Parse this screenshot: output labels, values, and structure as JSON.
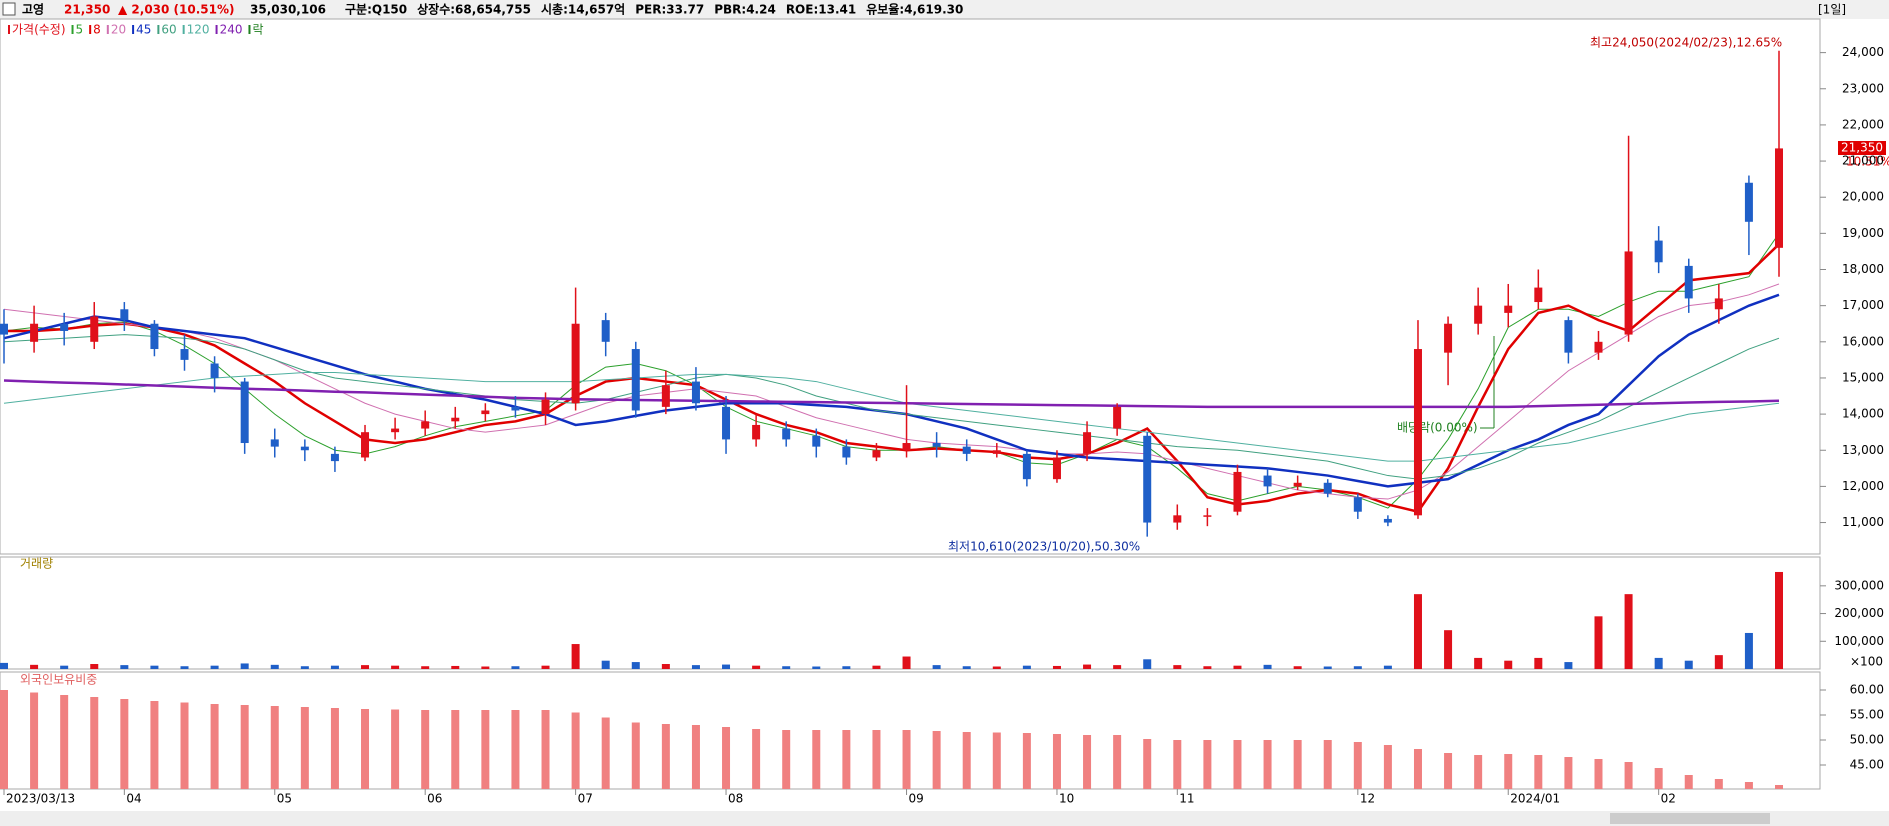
{
  "header": {
    "name": "고영",
    "price": "21,350",
    "change": "▲ 2,030 (10.51%)",
    "volume": "35,030,106",
    "items": [
      "구분:Q150",
      "상장수:68,654,755",
      "시총:14,657억",
      "PER:33.77",
      "PBR:4.24",
      "ROE:13.41",
      "유보율:4,619.30"
    ],
    "period": "[1일]"
  },
  "chart_data": [
    {
      "type": "candlestick",
      "price_name": "가격(수정)",
      "lock_label": "락",
      "categories": [
        "2023/03/13",
        null,
        null,
        null,
        "04",
        null,
        null,
        null,
        null,
        "05",
        null,
        null,
        null,
        null,
        "06",
        null,
        null,
        null,
        null,
        "07",
        null,
        null,
        null,
        null,
        "08",
        null,
        null,
        null,
        null,
        null,
        "09",
        null,
        null,
        null,
        null,
        "10",
        null,
        null,
        null,
        "11",
        null,
        null,
        null,
        null,
        null,
        "12",
        null,
        null,
        null,
        null,
        "2024/01",
        null,
        null,
        null,
        null,
        "02",
        null,
        null,
        null,
        null
      ],
      "candles": [
        [
          16500,
          16900,
          15400,
          16200
        ],
        [
          16000,
          17000,
          15700,
          16500
        ],
        [
          16500,
          16800,
          15900,
          16300
        ],
        [
          16000,
          17100,
          15800,
          16700
        ],
        [
          16900,
          17100,
          16300,
          16600
        ],
        [
          16500,
          16600,
          15600,
          15800
        ],
        [
          15800,
          16200,
          15200,
          15500
        ],
        [
          15400,
          15600,
          14600,
          15000
        ],
        [
          14900,
          15000,
          12900,
          13200
        ],
        [
          13300,
          13600,
          12800,
          13100
        ],
        [
          13100,
          13300,
          12700,
          13000
        ],
        [
          12900,
          13100,
          12400,
          12700
        ],
        [
          12800,
          13700,
          12700,
          13500
        ],
        [
          13500,
          13900,
          13300,
          13600
        ],
        [
          13600,
          14100,
          13400,
          13800
        ],
        [
          13800,
          14200,
          13600,
          13900
        ],
        [
          14000,
          14300,
          13800,
          14100
        ],
        [
          14200,
          14500,
          13900,
          14100
        ],
        [
          14000,
          14600,
          13700,
          14400
        ],
        [
          14300,
          17500,
          14100,
          16500
        ],
        [
          16600,
          16800,
          15600,
          16000
        ],
        [
          15800,
          16000,
          13900,
          14100
        ],
        [
          14200,
          15200,
          14000,
          14800
        ],
        [
          14900,
          15300,
          14100,
          14300
        ],
        [
          14200,
          14500,
          12900,
          13300
        ],
        [
          13300,
          14000,
          13100,
          13700
        ],
        [
          13600,
          13800,
          13100,
          13300
        ],
        [
          13400,
          13600,
          12800,
          13100
        ],
        [
          13100,
          13300,
          12600,
          12800
        ],
        [
          12800,
          13200,
          12700,
          13000
        ],
        [
          13000,
          14800,
          12800,
          13200
        ],
        [
          13200,
          13500,
          12800,
          13100
        ],
        [
          13100,
          13300,
          12700,
          12900
        ],
        [
          12900,
          13200,
          12800,
          13000
        ],
        [
          12900,
          13000,
          12000,
          12200
        ],
        [
          12200,
          13000,
          12100,
          12800
        ],
        [
          12900,
          13800,
          12700,
          13500
        ],
        [
          13600,
          14300,
          13400,
          14200
        ],
        [
          13400,
          13500,
          10610,
          11000
        ],
        [
          11000,
          11500,
          10800,
          11200
        ],
        [
          11200,
          11400,
          10900,
          11200
        ],
        [
          11300,
          12600,
          11200,
          12400
        ],
        [
          12300,
          12500,
          11800,
          12000
        ],
        [
          12000,
          12300,
          11900,
          12100
        ],
        [
          12100,
          12200,
          11700,
          11800
        ],
        [
          11700,
          11800,
          11100,
          11300
        ],
        [
          11100,
          11200,
          10900,
          11000
        ],
        [
          11200,
          16600,
          11100,
          15800
        ],
        [
          15700,
          16700,
          14800,
          16500
        ],
        [
          16500,
          17500,
          16200,
          17000
        ],
        [
          16800,
          17600,
          16400,
          17000
        ],
        [
          17100,
          18000,
          16900,
          17500
        ],
        [
          16600,
          16700,
          15400,
          15700
        ],
        [
          15700,
          16300,
          15500,
          16000
        ],
        [
          16200,
          21700,
          16000,
          18500
        ],
        [
          18800,
          19200,
          17900,
          18200
        ],
        [
          18100,
          18300,
          16800,
          17200
        ],
        [
          16900,
          17600,
          16500,
          17200
        ],
        [
          20400,
          20600,
          18400,
          19320
        ],
        [
          18600,
          24050,
          17800,
          21350
        ]
      ],
      "up_color": "#e0101a",
      "down_color": "#1f5fc8",
      "series": [
        {
          "name": "5",
          "color": "#2ca02c",
          "width": 1,
          "values": [
            16300,
            16400,
            16350,
            16500,
            16550,
            16300,
            15900,
            15400,
            14700,
            14000,
            13400,
            13000,
            12900,
            13100,
            13400,
            13650,
            13800,
            13950,
            14100,
            14800,
            15300,
            15400,
            15200,
            14800,
            14200,
            13800,
            13600,
            13400,
            13100,
            13000,
            13000,
            13100,
            13000,
            12950,
            12650,
            12600,
            12900,
            13300,
            13100,
            12500,
            11800,
            11600,
            11800,
            12000,
            11900,
            11700,
            11400,
            12200,
            13300,
            14700,
            16400,
            16900,
            16900,
            16700,
            17100,
            17400,
            17400,
            17600,
            17800,
            19000
          ]
        },
        {
          "name": "8",
          "color": "#e00000",
          "width": 2.5,
          "values": [
            16300,
            16300,
            16350,
            16450,
            16500,
            16400,
            16200,
            15900,
            15400,
            14900,
            14300,
            13800,
            13300,
            13200,
            13300,
            13500,
            13700,
            13800,
            14000,
            14500,
            14900,
            15000,
            14900,
            14800,
            14400,
            14000,
            13700,
            13500,
            13200,
            13100,
            13000,
            13050,
            13000,
            12950,
            12800,
            12750,
            12900,
            13200,
            13600,
            12700,
            11700,
            11500,
            11600,
            11800,
            11900,
            11800,
            11500,
            11300,
            12500,
            14200,
            15800,
            16800,
            17000,
            16600,
            16300,
            17000,
            17700,
            17800,
            17900,
            18700
          ]
        },
        {
          "name": "20",
          "color": "#d070b0",
          "width": 1,
          "values": [
            16900,
            16800,
            16700,
            16600,
            16500,
            16400,
            16300,
            16100,
            15800,
            15500,
            15100,
            14700,
            14300,
            14000,
            13800,
            13600,
            13500,
            13600,
            13700,
            14000,
            14300,
            14500,
            14600,
            14700,
            14600,
            14500,
            14200,
            13900,
            13700,
            13500,
            13300,
            13200,
            13150,
            13100,
            13000,
            12900,
            12900,
            12950,
            12900,
            12700,
            12500,
            12300,
            12100,
            11900,
            11800,
            11700,
            11650,
            11900,
            12400,
            13100,
            13800,
            14500,
            15200,
            15700,
            16200,
            16700,
            17000,
            17100,
            17300,
            17600
          ]
        },
        {
          "name": "45",
          "color": "#1030c0",
          "width": 2.5,
          "values": [
            16100,
            16300,
            16500,
            16700,
            16600,
            16400,
            16300,
            16200,
            16100,
            15850,
            15600,
            15350,
            15100,
            14900,
            14700,
            14550,
            14400,
            14200,
            14000,
            13700,
            13800,
            13950,
            14100,
            14200,
            14300,
            14300,
            14300,
            14250,
            14200,
            14100,
            14000,
            13800,
            13600,
            13300,
            13000,
            12900,
            12800,
            12750,
            12700,
            12650,
            12600,
            12550,
            12500,
            12400,
            12300,
            12150,
            12000,
            12100,
            12200,
            12600,
            13000,
            13300,
            13700,
            14000,
            14800,
            15600,
            16200,
            16600,
            17000,
            17300
          ]
        },
        {
          "name": "60",
          "color": "#40a080",
          "width": 1,
          "values": [
            16000,
            16050,
            16100,
            16150,
            16200,
            16150,
            16100,
            16000,
            15800,
            15500,
            15200,
            15000,
            14900,
            14800,
            14700,
            14600,
            14500,
            14400,
            14350,
            14300,
            14400,
            14600,
            14800,
            15000,
            15100,
            15000,
            14800,
            14500,
            14300,
            14100,
            14000,
            13900,
            13800,
            13700,
            13600,
            13500,
            13400,
            13300,
            13200,
            13100,
            13050,
            13000,
            12900,
            12800,
            12700,
            12500,
            12300,
            12200,
            12300,
            12500,
            12800,
            13200,
            13500,
            13800,
            14200,
            14600,
            15000,
            15400,
            15800,
            16100
          ]
        },
        {
          "name": "120",
          "color": "#50b0a0",
          "width": 1,
          "values": [
            14300,
            14400,
            14500,
            14600,
            14700,
            14800,
            14900,
            15000,
            15050,
            15100,
            15150,
            15150,
            15100,
            15050,
            15000,
            14950,
            14900,
            14900,
            14900,
            14900,
            14950,
            15000,
            15050,
            15100,
            15100,
            15050,
            15000,
            14900,
            14700,
            14500,
            14300,
            14200,
            14100,
            14000,
            13900,
            13800,
            13700,
            13600,
            13500,
            13400,
            13300,
            13200,
            13100,
            13000,
            12900,
            12800,
            12700,
            12700,
            12800,
            12900,
            13000,
            13100,
            13200,
            13400,
            13600,
            13800,
            14000,
            14100,
            14200,
            14300
          ]
        },
        {
          "name": "240",
          "color": "#8020b0",
          "width": 2.5,
          "values": [
            14930,
            14900,
            14870,
            14850,
            14820,
            14790,
            14760,
            14730,
            14700,
            14680,
            14650,
            14620,
            14600,
            14570,
            14540,
            14510,
            14480,
            14450,
            14430,
            14410,
            14400,
            14390,
            14380,
            14370,
            14360,
            14350,
            14340,
            14330,
            14320,
            14310,
            14300,
            14290,
            14280,
            14270,
            14260,
            14250,
            14240,
            14230,
            14220,
            14210,
            14200,
            14200,
            14200,
            14200,
            14200,
            14200,
            14200,
            14200,
            14200,
            14200,
            14200,
            14220,
            14240,
            14260,
            14280,
            14300,
            14320,
            14340,
            14350,
            14370
          ]
        }
      ],
      "ylim": [
        10130,
        24930
      ],
      "yticks": [
        {
          "value": 11000,
          "label": "11,000"
        },
        {
          "value": 12000,
          "label": "12,000"
        },
        {
          "value": 13000,
          "label": "13,000"
        },
        {
          "value": 14000,
          "label": "14,000"
        },
        {
          "value": 15000,
          "label": "15,000"
        },
        {
          "value": 16000,
          "label": "16,000"
        },
        {
          "value": 17000,
          "label": "17,000"
        },
        {
          "value": 18000,
          "label": "18,000"
        },
        {
          "value": 19000,
          "label": "19,000"
        },
        {
          "value": 20000,
          "label": "20,000"
        },
        {
          "value": 21000,
          "label": "21,000"
        },
        {
          "value": 22000,
          "label": "22,000"
        },
        {
          "value": 23000,
          "label": "23,000"
        },
        {
          "value": 24000,
          "label": "24,000"
        }
      ],
      "last_price_label": "21,350",
      "last_change_label": "10.51%",
      "annotations": [
        "최고24,050(2024/02/23),12.65%",
        "최저10,610(2023/10/20),50.30%",
        "배당락(0.00%)"
      ]
    },
    {
      "type": "bar",
      "title": "거래량",
      "unit": "×100",
      "values": [
        22000,
        15000,
        12000,
        18000,
        14000,
        12000,
        10000,
        12000,
        20000,
        15000,
        10000,
        12000,
        14000,
        12000,
        10000,
        11000,
        9000,
        10000,
        12000,
        90000,
        30000,
        25000,
        18000,
        14000,
        16000,
        12000,
        10000,
        9000,
        10000,
        12000,
        45000,
        14000,
        10000,
        9000,
        12000,
        11000,
        16000,
        14000,
        35000,
        14000,
        10000,
        12000,
        15000,
        10000,
        9000,
        10000,
        12000,
        270000,
        140000,
        40000,
        30000,
        40000,
        25000,
        190000,
        270000,
        40000,
        30000,
        50000,
        130000,
        350000
      ],
      "ylim": [
        0,
        404000
      ],
      "yticks": [
        {
          "value": 100000,
          "label": "100,000"
        },
        {
          "value": 200000,
          "label": "200,000"
        },
        {
          "value": 300000,
          "label": "300,000"
        }
      ]
    },
    {
      "type": "bar",
      "title": "외국인보유비중",
      "color": "#f08080",
      "values": [
        60,
        59.5,
        59,
        58.6,
        58.2,
        57.8,
        57.5,
        57.2,
        57,
        56.8,
        56.6,
        56.4,
        56.2,
        56.1,
        56,
        56,
        56,
        56,
        56,
        55.5,
        54.5,
        53.5,
        53.2,
        53,
        52.6,
        52.2,
        52,
        52,
        52,
        52,
        52,
        51.8,
        51.6,
        51.5,
        51.4,
        51.2,
        51,
        51,
        50.2,
        50,
        50,
        50,
        50,
        50,
        50,
        49.6,
        49,
        48.2,
        47.4,
        47,
        47.2,
        47,
        46.6,
        46.2,
        45.6,
        44.4,
        43,
        42.2,
        41.6,
        41
      ],
      "ylim": [
        40.2,
        63.6
      ],
      "yticks": [
        {
          "value": 45,
          "label": "45.00"
        },
        {
          "value": 50,
          "label": "50.00"
        },
        {
          "value": 55,
          "label": "55.00"
        },
        {
          "value": 60,
          "label": "60.00"
        }
      ]
    }
  ]
}
